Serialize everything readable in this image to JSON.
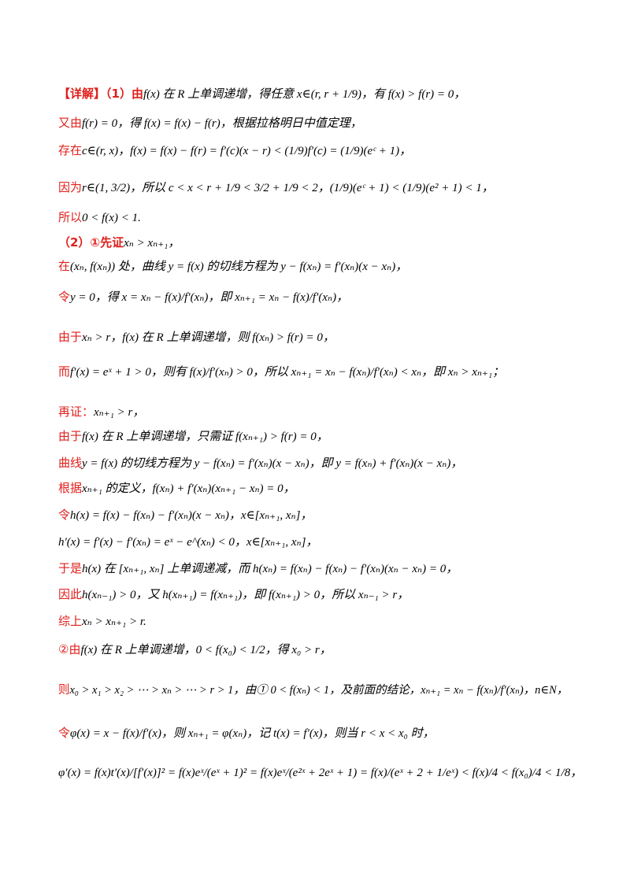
{
  "lines": [
    {
      "red_label": "【详解】（1）由",
      "text": "f(x) 在 R 上单调递增，得任意 x∈(r, r + 1/9)，有 f(x) > f(r) = 0，"
    },
    {
      "red_label": "又由",
      "text": "f(r) = 0，得 f(x) = f(x) − f(r)，根据拉格明日中值定理，"
    },
    {
      "red_label": "存在",
      "text": "c∈(r, x)，f(x) = f(x) − f(r) = f′(c)(x − r) < (1/9)f′(c) = (1/9)(eᶜ + 1)，"
    },
    {
      "red_label": "因为",
      "text": "r∈(1, 3/2)，所以 c < x < r + 1/9 < 3/2 + 1/9 < 2，(1/9)(eᶜ + 1) < (1/9)(e² + 1) < 1，"
    },
    {
      "red_label": "所以",
      "text": "0 < f(x) < 1."
    },
    {
      "red_label": "（2）①先证",
      "text": "xₙ > xₙ₊₁，"
    },
    {
      "red_label": "在",
      "text": "(xₙ, f(xₙ)) 处，曲线 y = f(x) 的切线方程为 y − f(xₙ) = f′(xₙ)(x − xₙ)，"
    },
    {
      "red_label": "令",
      "text": "y = 0，得 x = xₙ − f(x)/f′(xₙ)，即 xₙ₊₁ = xₙ − f(x)/f′(xₙ)，"
    },
    {
      "red_label": "由于",
      "text": "xₙ > r，f(x) 在 R 上单调递增，则 f(xₙ) > f(r) = 0，"
    },
    {
      "red_label": "而",
      "text": "f′(x) = eˣ + 1 > 0，则有 f(x)/f′(xₙ) > 0，所以 xₙ₊₁ = xₙ − f(xₙ)/f′(xₙ) < xₙ，即 xₙ > xₙ₊₁；"
    },
    {
      "red_label": "再证：",
      "text": "xₙ₊₁ > r，"
    },
    {
      "red_label": "由于",
      "text": "f(x) 在 R 上单调递增，只需证 f(xₙ₊₁) > f(r) = 0，"
    },
    {
      "red_label": "曲线",
      "text": "y = f(x) 的切线方程为 y − f(xₙ) = f′(xₙ)(x − xₙ)，即 y = f(xₙ) + f′(xₙ)(x − xₙ)，"
    },
    {
      "red_label": "根据",
      "text": "xₙ₊₁ 的定义，f(xₙ) + f′(xₙ)(xₙ₊₁ − xₙ) = 0，"
    },
    {
      "red_label": "令",
      "text": "h(x) = f(x) − f(xₙ) − f′(xₙ)(x − xₙ)，x∈[xₙ₊₁, xₙ]，"
    },
    {
      "red_label": "",
      "text": "h′(x) = f′(x) − f′(xₙ) = eˣ − e^(xₙ) < 0，x∈[xₙ₊₁, xₙ]，"
    },
    {
      "red_label": "于是",
      "text": "h(x) 在 [xₙ₊₁, xₙ] 上单调递减，而 h(xₙ) = f(xₙ) − f(xₙ) − f′(xₙ)(xₙ − xₙ) = 0，"
    },
    {
      "red_label": "因此",
      "text": "h(xₙ₋₁) > 0，又 h(xₙ₊₁) = f(xₙ₊₁)，即 f(xₙ₊₁) > 0，所以 xₙ₋₁ > r，"
    },
    {
      "red_label": "综上",
      "text": "xₙ > xₙ₊₁ > r."
    },
    {
      "red_label": "②由",
      "text": "f(x) 在 R 上单调递增，0 < f(x₀) < 1/2，得 x₀ > r，"
    },
    {
      "red_label": "则",
      "text": "x₀ > x₁ > x₂ > ⋯ > xₙ > ⋯ > r > 1，由① 0 < f(xₙ) < 1，及前面的结论，xₙ₊₁ = xₙ − f(xₙ)/f′(xₙ)，n∈N，"
    },
    {
      "red_label": "令",
      "text": "φ(x) = x − f(x)/f′(x)，则 xₙ₊₁ = φ(xₙ)，记 t(x) = f′(x)，则当 r < x < x₀ 时，"
    },
    {
      "red_label": "",
      "text": "φ′(x) = f(x)t′(x)/[f′(x)]² = f(x)eˣ/(eˣ + 1)² = f(x)eˣ/(e²ˣ + 2eˣ + 1) = f(x)/(eˣ + 2 + 1/eˣ) < f(x)/4 < f(x₀)/4 < 1/8，"
    }
  ]
}
